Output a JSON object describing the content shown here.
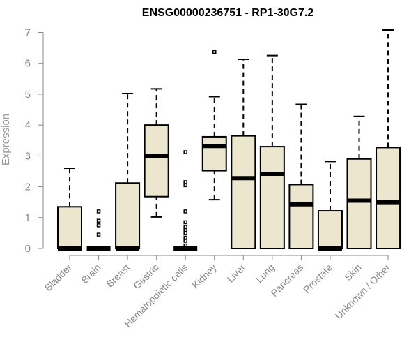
{
  "chart_data": {
    "type": "boxplot",
    "title": "ENSG00000236751 - RP1-30G7.2",
    "xlabel": "",
    "ylabel": "Expression",
    "ylim": [
      0,
      7
    ],
    "yticks": [
      0,
      1,
      2,
      3,
      4,
      5,
      6,
      7
    ],
    "grid": false,
    "legend": "none",
    "colors": {
      "box_fill": "#ede6cf",
      "box_stroke": "#000000",
      "median": "#000000",
      "axis": "#888888",
      "tick_text": "#888888",
      "title": "#000000"
    },
    "categories": [
      "Bladder",
      "Brain",
      "Breast",
      "Gastric",
      "Hematopoietic cells",
      "Kidney",
      "Liver",
      "Lung",
      "Pancreas",
      "Prostate",
      "Skin",
      "Unknown / Other"
    ],
    "boxes": [
      {
        "category": "Bladder",
        "min": 0,
        "q1": 0,
        "median": 0,
        "q3": 1.35,
        "max": 2.6,
        "outliers": []
      },
      {
        "category": "Brain",
        "min": 0,
        "q1": 0,
        "median": 0,
        "q3": 0,
        "max": 0,
        "outliers": [
          0.45,
          0.75,
          0.9,
          1.2
        ]
      },
      {
        "category": "Breast",
        "min": 0,
        "q1": 0,
        "median": 0,
        "q3": 2.12,
        "max": 5.02,
        "outliers": []
      },
      {
        "category": "Gastric",
        "min": 1.02,
        "q1": 1.68,
        "median": 3.0,
        "q3": 4.0,
        "max": 5.17,
        "outliers": []
      },
      {
        "category": "Hematopoietic cells",
        "min": 0,
        "q1": 0,
        "median": 0,
        "q3": 0,
        "max": 0,
        "outliers": [
          0.1,
          0.25,
          0.35,
          0.5,
          0.6,
          0.7,
          0.85,
          1.2,
          2.05,
          2.15,
          3.12
        ]
      },
      {
        "category": "Kidney",
        "min": 1.58,
        "q1": 2.52,
        "median": 3.32,
        "q3": 3.62,
        "max": 4.92,
        "outliers": [
          6.37
        ]
      },
      {
        "category": "Liver",
        "min": 0,
        "q1": 0,
        "median": 2.28,
        "q3": 3.65,
        "max": 6.13,
        "outliers": []
      },
      {
        "category": "Lung",
        "min": 0,
        "q1": 0,
        "median": 2.42,
        "q3": 3.3,
        "max": 6.25,
        "outliers": []
      },
      {
        "category": "Pancreas",
        "min": 0,
        "q1": 0,
        "median": 1.43,
        "q3": 2.07,
        "max": 4.67,
        "outliers": []
      },
      {
        "category": "Prostate",
        "min": 0,
        "q1": 0,
        "median": 0,
        "q3": 1.22,
        "max": 2.82,
        "outliers": []
      },
      {
        "category": "Skin",
        "min": 0,
        "q1": 0,
        "median": 1.55,
        "q3": 2.9,
        "max": 4.28,
        "outliers": []
      },
      {
        "category": "Unknown / Other",
        "min": 0,
        "q1": 0,
        "median": 1.5,
        "q3": 3.27,
        "max": 7.08,
        "outliers": []
      }
    ]
  }
}
